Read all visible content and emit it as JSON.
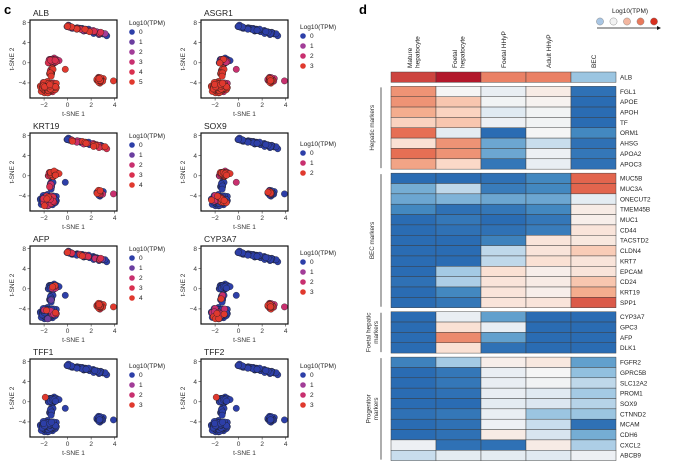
{
  "chart_data": [
    {
      "panel": "c",
      "type": "scatter",
      "subtype": "t-SNE feature plots",
      "xlabel": "t-SNE 1",
      "ylabel": "t-SNE 2",
      "xticks": [
        -2,
        0,
        2,
        4
      ],
      "yticks": [
        8,
        4,
        0,
        -4
      ],
      "xlim": [
        -3.2,
        4.2
      ],
      "ylim": [
        -7,
        8.5
      ],
      "legend_title": "Log10(TPM)",
      "color_scale": [
        "#2d3fa8",
        "#6b3fa0",
        "#a23d98",
        "#c8306f",
        "#d9304f",
        "#e0392e"
      ],
      "panels": [
        {
          "gene": "ALB",
          "levels": [
            "0",
            "1",
            "2",
            "3",
            "4",
            "5"
          ],
          "clusters": {
            "top": 0.4,
            "left_upper": 3.2,
            "left_lower": 4.6,
            "right": 4.8
          }
        },
        {
          "gene": "ASGR1",
          "levels": [
            "0",
            "1",
            "2",
            "3"
          ],
          "clusters": {
            "top": 0,
            "left_upper": 0.3,
            "left_lower": 2.9,
            "right": 2.6
          }
        },
        {
          "gene": "KRT19",
          "levels": [
            "0",
            "1",
            "2",
            "3",
            "4"
          ],
          "clusters": {
            "top": 0.3,
            "left_upper": 3.1,
            "left_lower": 0.1,
            "right": 0.4
          }
        },
        {
          "gene": "SOX9",
          "levels": [
            "0",
            "1",
            "2"
          ],
          "clusters": {
            "top": 0,
            "left_upper": 1.7,
            "left_lower": 0.15,
            "right": 0.2
          }
        },
        {
          "gene": "AFP",
          "levels": [
            "0",
            "1",
            "2",
            "3",
            "4"
          ],
          "clusters": {
            "top": 0.2,
            "left_upper": 0.1,
            "left_lower": 0.05,
            "right": 3.8
          }
        },
        {
          "gene": "CYP3A7",
          "levels": [
            "0",
            "1",
            "2",
            "3"
          ],
          "clusters": {
            "top": 0,
            "left_upper": 0,
            "left_lower": 0.1,
            "right": 2.6
          }
        },
        {
          "gene": "TFF1",
          "levels": [
            "0",
            "1",
            "2",
            "3"
          ],
          "clusters": {
            "top": 0,
            "left_upper": 0,
            "left_lower": 0,
            "right": 0
          }
        },
        {
          "gene": "TFF2",
          "levels": [
            "0",
            "1",
            "2",
            "3"
          ],
          "clusters": {
            "top": 0,
            "left_upper": 0,
            "left_lower": 0,
            "right": 0
          }
        }
      ]
    },
    {
      "panel": "d",
      "type": "heatmap",
      "legend_title": "Log10(TPM)",
      "legend_colors": [
        "#a9c6e4",
        "#f2f2f2",
        "#f4b7a0",
        "#e9795b",
        "#d7301f"
      ],
      "columns": [
        "Mature\nhepatocyte",
        "Foetal\nhepatocyte",
        "Foetal HHyP",
        "Adult HHyP",
        "BEC"
      ],
      "value_range": [
        -3,
        3
      ],
      "groups": [
        {
          "label": "",
          "rows": [
            {
              "gene": "ALB",
              "values": [
                2.6,
                3.0,
                2.0,
                2.0,
                -1.4
              ]
            }
          ]
        },
        {
          "label": "Hepatic markers",
          "rows": [
            {
              "gene": "FGL1",
              "values": [
                1.8,
                0.0,
                -0.3,
                0.3,
                -2.8
              ]
            },
            {
              "gene": "APOE",
              "values": [
                1.8,
                1.1,
                -0.1,
                0.1,
                -2.9
              ]
            },
            {
              "gene": "APOH",
              "values": [
                1.5,
                0.9,
                -0.5,
                -0.1,
                -2.9
              ]
            },
            {
              "gene": "TF",
              "values": [
                0.9,
                1.1,
                -0.2,
                -0.1,
                -2.9
              ]
            },
            {
              "gene": "ORM1",
              "values": [
                2.2,
                -0.4,
                -2.9,
                0.0,
                -2.4
              ]
            },
            {
              "gene": "AHSG",
              "values": [
                0.6,
                1.8,
                -1.9,
                -0.9,
                -2.8
              ]
            },
            {
              "gene": "APOA2",
              "values": [
                2.2,
                1.8,
                -1.9,
                -0.2,
                -2.7
              ]
            },
            {
              "gene": "APOC3",
              "values": [
                1.6,
                0.8,
                -2.7,
                -0.3,
                -2.8
              ]
            }
          ]
        },
        {
          "label": "BEC markers",
          "rows": [
            {
              "gene": "MUC5B",
              "values": [
                -2.9,
                -2.9,
                -2.8,
                -2.4,
                2.3
              ]
            },
            {
              "gene": "MUC3A",
              "values": [
                -1.8,
                -1.0,
                -2.6,
                -2.4,
                2.3
              ]
            },
            {
              "gene": "ONECUT2",
              "values": [
                -1.9,
                -1.7,
                -1.9,
                -1.9,
                -0.4
              ]
            },
            {
              "gene": "TMEM45B",
              "values": [
                -2.4,
                -2.8,
                -2.7,
                -2.4,
                0.3
              ]
            },
            {
              "gene": "MUC1",
              "values": [
                -2.9,
                -2.7,
                -2.9,
                -2.7,
                0.2
              ]
            },
            {
              "gene": "CD44",
              "values": [
                -2.9,
                -2.8,
                -2.8,
                -2.6,
                0.5
              ]
            },
            {
              "gene": "TACSTD2",
              "values": [
                -2.9,
                -2.9,
                -2.5,
                0.5,
                0.4
              ]
            },
            {
              "gene": "CLDN4",
              "values": [
                -2.9,
                -2.9,
                -1.0,
                0.5,
                1.0
              ]
            },
            {
              "gene": "KRT7",
              "values": [
                -2.9,
                -2.9,
                -1.0,
                0.6,
                0.5
              ]
            },
            {
              "gene": "EPCAM",
              "values": [
                -2.9,
                -1.3,
                0.6,
                0.2,
                0.5
              ]
            },
            {
              "gene": "CD24",
              "values": [
                -2.8,
                -1.2,
                0.5,
                0.3,
                1.1
              ]
            },
            {
              "gene": "KRT19",
              "values": [
                -2.9,
                -2.4,
                0.5,
                0.2,
                1.5
              ]
            },
            {
              "gene": "SPP1",
              "values": [
                -2.9,
                -2.7,
                0.5,
                0.5,
                2.4
              ]
            }
          ]
        },
        {
          "label": "Foetal hepatic\nmarkers",
          "rows": [
            {
              "gene": "CYP3A7",
              "values": [
                -2.9,
                -0.3,
                -2.0,
                -2.9,
                -2.9
              ]
            },
            {
              "gene": "GPC3",
              "values": [
                -2.9,
                0.6,
                -0.3,
                -2.9,
                -2.9
              ]
            },
            {
              "gene": "AFP",
              "values": [
                -2.9,
                1.9,
                -2.0,
                -2.9,
                -2.9
              ]
            },
            {
              "gene": "DLK1",
              "values": [
                -2.9,
                0.6,
                -2.8,
                -2.9,
                -2.9
              ]
            }
          ]
        },
        {
          "label": "Progenitor\nmarkers",
          "rows": [
            {
              "gene": "FGFR2",
              "values": [
                -2.5,
                -1.3,
                0.2,
                0.4,
                -2.0
              ]
            },
            {
              "gene": "GPRC5B",
              "values": [
                -2.9,
                -2.7,
                -0.3,
                0.0,
                -1.5
              ]
            },
            {
              "gene": "SLC12A2",
              "values": [
                -2.9,
                -2.7,
                -0.3,
                -0.1,
                -1.0
              ]
            },
            {
              "gene": "PROM1",
              "values": [
                -2.9,
                -2.8,
                -0.3,
                -0.5,
                -1.3
              ]
            },
            {
              "gene": "SOX9",
              "values": [
                -2.9,
                -2.9,
                -0.4,
                -0.6,
                -1.1
              ]
            },
            {
              "gene": "CTNND2",
              "values": [
                -2.8,
                -2.7,
                -0.3,
                -1.4,
                -1.4
              ]
            },
            {
              "gene": "MCAM",
              "values": [
                -2.9,
                -2.8,
                -0.2,
                -0.9,
                -2.8
              ]
            },
            {
              "gene": "CDH6",
              "values": [
                -2.9,
                -2.8,
                0.3,
                -0.7,
                -1.8
              ]
            },
            {
              "gene": "CXCL2",
              "values": [
                -0.2,
                -2.8,
                -2.8,
                0.3,
                -1.2
              ]
            },
            {
              "gene": "ABCB9",
              "values": [
                -0.9,
                -0.4,
                -0.4,
                -0.5,
                -0.2
              ]
            }
          ]
        }
      ]
    }
  ],
  "labels": {
    "panel_c": "c",
    "panel_d": "d"
  }
}
